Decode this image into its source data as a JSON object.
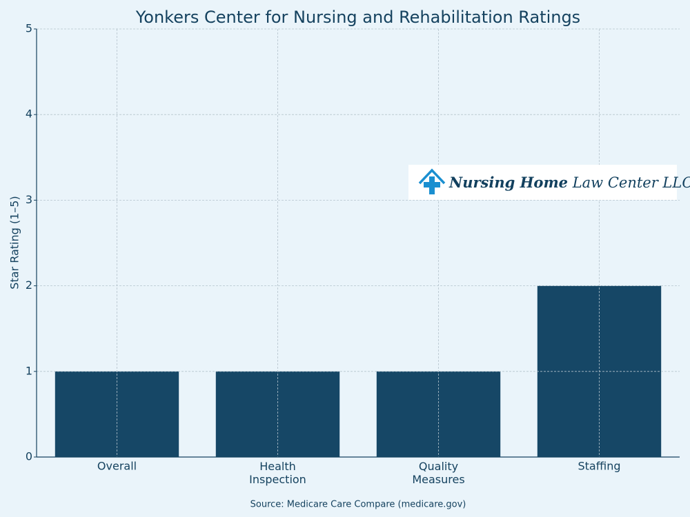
{
  "chart_data": {
    "type": "bar",
    "title": "Yonkers Center for Nursing and Rehabilitation Ratings",
    "y_label": "Star Rating (1–5)",
    "categories": [
      "Overall",
      "Health\nInspection",
      "Quality\nMeasures",
      "Staffing"
    ],
    "values": [
      1,
      1,
      1,
      2
    ],
    "color": "#164766",
    "ylim": [
      0,
      5
    ],
    "yticks": [
      0,
      1,
      2,
      3,
      4,
      5
    ],
    "grid": true,
    "source": "Source: Medicare Care Compare (medicare.gov)"
  },
  "logo": {
    "bold": "Nursing Home",
    "regular": "Law Center LLC"
  }
}
